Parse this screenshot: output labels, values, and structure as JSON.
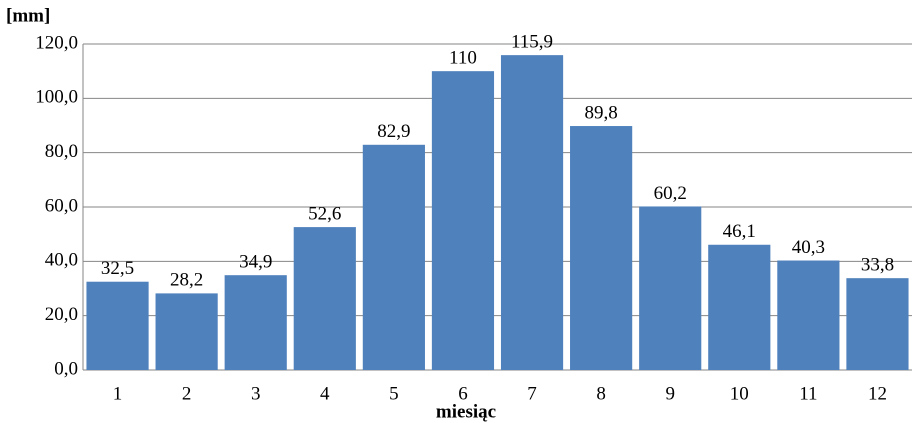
{
  "chart_data": {
    "type": "bar",
    "y_label": "[mm]",
    "x_label": "miesiąc",
    "categories": [
      "1",
      "2",
      "3",
      "4",
      "5",
      "6",
      "7",
      "8",
      "9",
      "10",
      "11",
      "12"
    ],
    "values": [
      32.5,
      28.2,
      34.9,
      52.6,
      82.9,
      110,
      115.9,
      89.8,
      60.2,
      46.1,
      40.3,
      33.8
    ],
    "value_labels": [
      "32,5",
      "28,2",
      "34,9",
      "52,6",
      "82,9",
      "110",
      "115,9",
      "89,8",
      "60,2",
      "46,1",
      "40,3",
      "33,8"
    ],
    "color": "#4f81bd",
    "ylim": [
      0,
      120
    ],
    "yticks": [
      {
        "value": 0,
        "label": "0,0"
      },
      {
        "value": 20,
        "label": "20,0"
      },
      {
        "value": 40,
        "label": "40,0"
      },
      {
        "value": 60,
        "label": "60,0"
      },
      {
        "value": 80,
        "label": "80,0"
      },
      {
        "value": 100,
        "label": "100,0"
      },
      {
        "value": 120,
        "label": "120,0"
      }
    ],
    "grid": true
  }
}
